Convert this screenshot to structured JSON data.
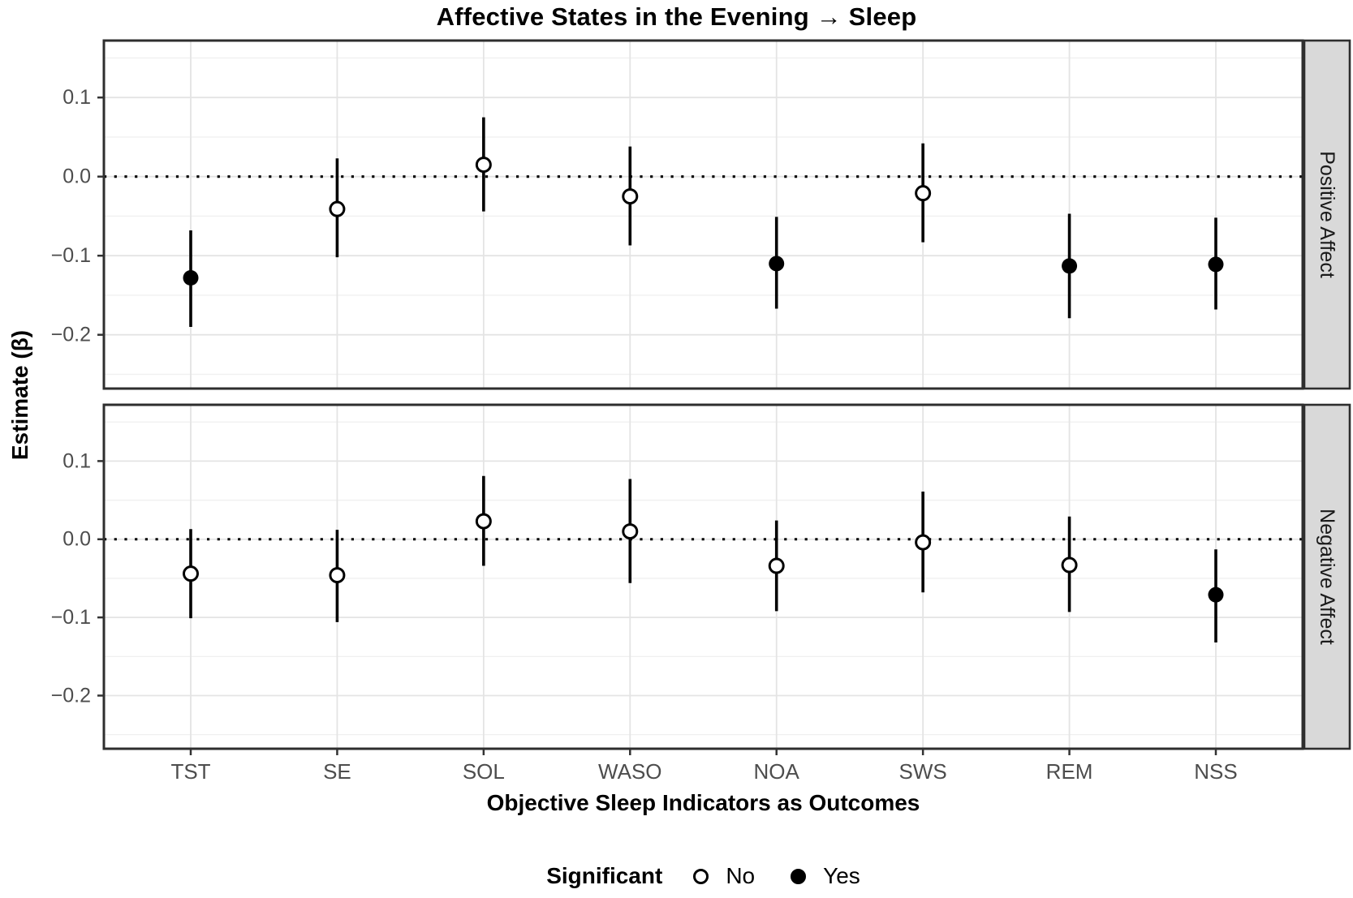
{
  "title": "Affective States in the Evening → Sleep",
  "y_axis": {
    "label": "Estimate (β)"
  },
  "x_axis": {
    "label": "Objective Sleep Indicators as Outcomes"
  },
  "legend": {
    "title": "Significant",
    "no_label": "No",
    "yes_label": "Yes"
  },
  "colors": {
    "point": "#000000",
    "strip_fill": "#d9d9d9",
    "strip_text": "#1a1a1a",
    "panel_border": "#2e2e2e",
    "grid_major": "#e4e4e4",
    "grid_minor": "#f0f0f0",
    "tick_mark": "#333333",
    "tick_label": "#4d4d4d",
    "background": "#ffffff"
  },
  "chart_data": {
    "type": "scatter",
    "variant": "point-range (forest plot), 2 horizontal facets, error bars = confidence intervals",
    "title": "Affective States in the Evening → Sleep",
    "xlabel": "Objective Sleep Indicators as Outcomes",
    "ylabel": "Estimate (β)",
    "categories": [
      "TST",
      "SE",
      "SOL",
      "WASO",
      "NOA",
      "SWS",
      "REM",
      "NSS"
    ],
    "ylim": [
      -0.268,
      0.172
    ],
    "ytick_values": [
      0.1,
      0,
      -0.1,
      -0.2
    ],
    "ytick_labels": [
      "0.1",
      "0.0",
      "−0.1",
      "−0.2"
    ],
    "ytick_minor": [
      0.15,
      0.05,
      -0.05,
      -0.15,
      -0.25
    ],
    "reference_line_y": 0,
    "grid": "horizontal major+minor, vertical major at categories; white panel background",
    "legend_position": "bottom",
    "legend_title": "Significant",
    "legend_items": [
      "No",
      "Yes"
    ],
    "facets": [
      {
        "label": "Positive Affect",
        "points": [
          {
            "category": "TST",
            "estimate": -0.128,
            "ci_low": -0.19,
            "ci_high": -0.068,
            "significant": true
          },
          {
            "category": "SE",
            "estimate": -0.041,
            "ci_low": -0.102,
            "ci_high": 0.023,
            "significant": false
          },
          {
            "category": "SOL",
            "estimate": 0.015,
            "ci_low": -0.044,
            "ci_high": 0.075,
            "significant": false
          },
          {
            "category": "WASO",
            "estimate": -0.025,
            "ci_low": -0.087,
            "ci_high": 0.038,
            "significant": false
          },
          {
            "category": "NOA",
            "estimate": -0.11,
            "ci_low": -0.167,
            "ci_high": -0.051,
            "significant": true
          },
          {
            "category": "SWS",
            "estimate": -0.021,
            "ci_low": -0.083,
            "ci_high": 0.042,
            "significant": false
          },
          {
            "category": "REM",
            "estimate": -0.113,
            "ci_low": -0.179,
            "ci_high": -0.047,
            "significant": true
          },
          {
            "category": "NSS",
            "estimate": -0.111,
            "ci_low": -0.168,
            "ci_high": -0.052,
            "significant": true
          }
        ]
      },
      {
        "label": "Negative Affect",
        "points": [
          {
            "category": "TST",
            "estimate": -0.044,
            "ci_low": -0.101,
            "ci_high": 0.013,
            "significant": false
          },
          {
            "category": "SE",
            "estimate": -0.046,
            "ci_low": -0.106,
            "ci_high": 0.012,
            "significant": false
          },
          {
            "category": "SOL",
            "estimate": 0.023,
            "ci_low": -0.034,
            "ci_high": 0.081,
            "significant": false
          },
          {
            "category": "WASO",
            "estimate": 0.01,
            "ci_low": -0.056,
            "ci_high": 0.077,
            "significant": false
          },
          {
            "category": "NOA",
            "estimate": -0.034,
            "ci_low": -0.092,
            "ci_high": 0.024,
            "significant": false
          },
          {
            "category": "SWS",
            "estimate": -0.004,
            "ci_low": -0.068,
            "ci_high": 0.061,
            "significant": false
          },
          {
            "category": "REM",
            "estimate": -0.033,
            "ci_low": -0.093,
            "ci_high": 0.029,
            "significant": false
          },
          {
            "category": "NSS",
            "estimate": -0.071,
            "ci_low": -0.132,
            "ci_high": -0.013,
            "significant": true
          }
        ]
      }
    ]
  }
}
